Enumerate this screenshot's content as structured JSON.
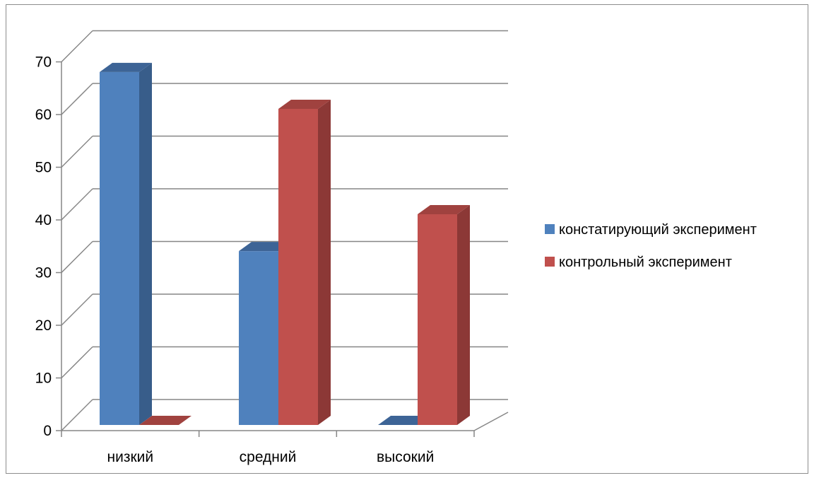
{
  "chart_data": {
    "type": "bar",
    "categories": [
      "низкий",
      "средний",
      "высокий"
    ],
    "series": [
      {
        "name": "констатирующий эксперимент",
        "values": [
          67,
          33,
          0
        ]
      },
      {
        "name": "контрольный эксперимент",
        "values": [
          0,
          60,
          40
        ]
      }
    ],
    "ylim": [
      0,
      70
    ],
    "yticks": [
      0,
      10,
      20,
      30,
      40,
      50,
      60,
      70
    ],
    "grid": true,
    "legend_position": "right",
    "style": "3d-clustered-column"
  },
  "colors": {
    "series": [
      {
        "front": "#4f81bd",
        "side": "#385d8a",
        "top": "#3d6496"
      },
      {
        "front": "#c0504d",
        "side": "#8c3836",
        "top": "#a0423f"
      }
    ],
    "gridline": "#868686",
    "axis": "#868686"
  }
}
